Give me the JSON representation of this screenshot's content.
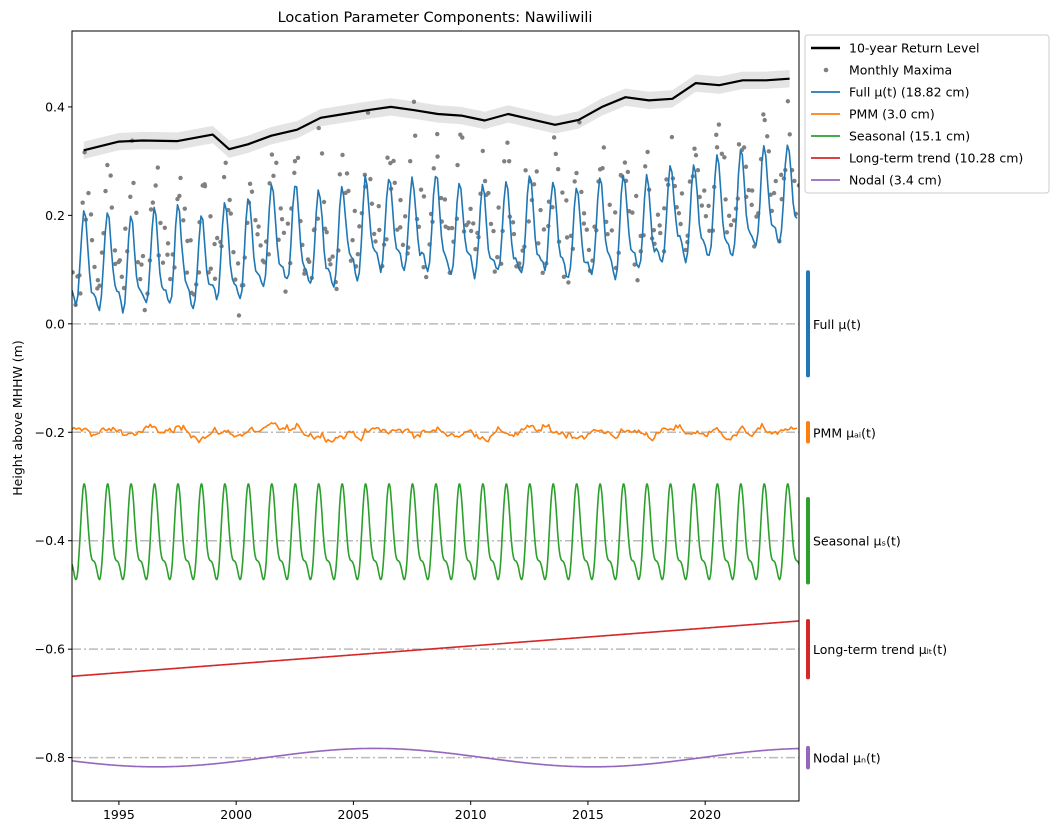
{
  "chart_data": {
    "type": "line",
    "title": "Location Parameter Components: Nawiliwili",
    "xlabel": "",
    "ylabel": "Height above MHHW (m)",
    "xlim": [
      1993,
      2024
    ],
    "ylim": [
      -0.88,
      0.54
    ],
    "xticks": [
      1995,
      2000,
      2005,
      2010,
      2015,
      2020
    ],
    "yticks": [
      -0.8,
      -0.6,
      -0.4,
      -0.2,
      0.0,
      0.2,
      0.4
    ],
    "ytick_labels": [
      "−0.8",
      "−0.6",
      "−0.4",
      "−0.2",
      "0.0",
      "0.2",
      "0.4"
    ],
    "baselines": [
      0.0,
      -0.2,
      -0.4,
      -0.6,
      -0.8
    ],
    "legend": {
      "placement": "outside-top-right",
      "entries": [
        {
          "label": "10-year Return Level",
          "color": "#000000",
          "kind": "line"
        },
        {
          "label": "Monthly Maxima",
          "color": "#808080",
          "kind": "dot"
        },
        {
          "label": "Full μ(t) (18.82 cm)",
          "color": "#1f77b4",
          "kind": "line"
        },
        {
          "label": "PMM (3.0 cm)",
          "color": "#ff7f0e",
          "kind": "line"
        },
        {
          "label": "Seasonal (15.1 cm)",
          "color": "#2ca02c",
          "kind": "line"
        },
        {
          "label": "Long-term trend (10.28 cm)",
          "color": "#d62728",
          "kind": "line"
        },
        {
          "label": "Nodal (3.4 cm)",
          "color": "#9467bd",
          "kind": "line"
        }
      ]
    },
    "component_labels": [
      {
        "label": "Full μ(t)",
        "color": "#1f77b4",
        "range": [
          -0.095,
          0.095
        ]
      },
      {
        "label": "PMM μₐᵢ(t)",
        "color": "#ff7f0e",
        "range": [
          -0.217,
          -0.183
        ]
      },
      {
        "label": "Seasonal μₛ(t)",
        "color": "#2ca02c",
        "range": [
          -0.477,
          -0.323
        ]
      },
      {
        "label": "Long-term trend μₗₜ(t)",
        "color": "#d62728",
        "range": [
          -0.652,
          -0.548
        ]
      },
      {
        "label": "Nodal μₙ(t)",
        "color": "#9467bd",
        "range": [
          -0.818,
          -0.782
        ]
      }
    ],
    "series": [
      {
        "name": "10-year Return Level",
        "color": "#000000",
        "x": [
          1993.5,
          1995,
          1996,
          1997.5,
          1999,
          1999.7,
          2000.5,
          2001.5,
          2002.6,
          2003.6,
          2004.6,
          2005.6,
          2006.6,
          2007.6,
          2008.6,
          2009.6,
          2010.6,
          2011.6,
          2012.6,
          2013.6,
          2014.6,
          2015.6,
          2016.6,
          2017.6,
          2018.6,
          2019.6,
          2020.6,
          2021.6,
          2022.6,
          2023.6
        ],
        "y": [
          0.32,
          0.336,
          0.338,
          0.337,
          0.349,
          0.322,
          0.331,
          0.347,
          0.358,
          0.38,
          0.387,
          0.394,
          0.4,
          0.394,
          0.387,
          0.384,
          0.375,
          0.387,
          0.377,
          0.367,
          0.376,
          0.4,
          0.418,
          0.412,
          0.415,
          0.444,
          0.44,
          0.449,
          0.449,
          0.452
        ],
        "band_halfwidth": 0.016
      },
      {
        "name": "Long-term trend",
        "color": "#d62728",
        "x": [
          1993,
          2024
        ],
        "y": [
          -0.65,
          -0.548
        ]
      }
    ],
    "monthly_maxima_description_count": 372,
    "components": {
      "full_offset": 0.0,
      "pmm_offset": -0.2,
      "seasonal_offset": -0.4,
      "trend_offset": -0.6,
      "nodal_offset": -0.8,
      "seasonal_amplitude_annual": 0.077,
      "seasonal_amplitude_semiannual": 0.03,
      "nodal_amplitude": 0.017,
      "nodal_period_years": 18.61,
      "trend_start": -0.05,
      "trend_end": 0.052
    }
  }
}
